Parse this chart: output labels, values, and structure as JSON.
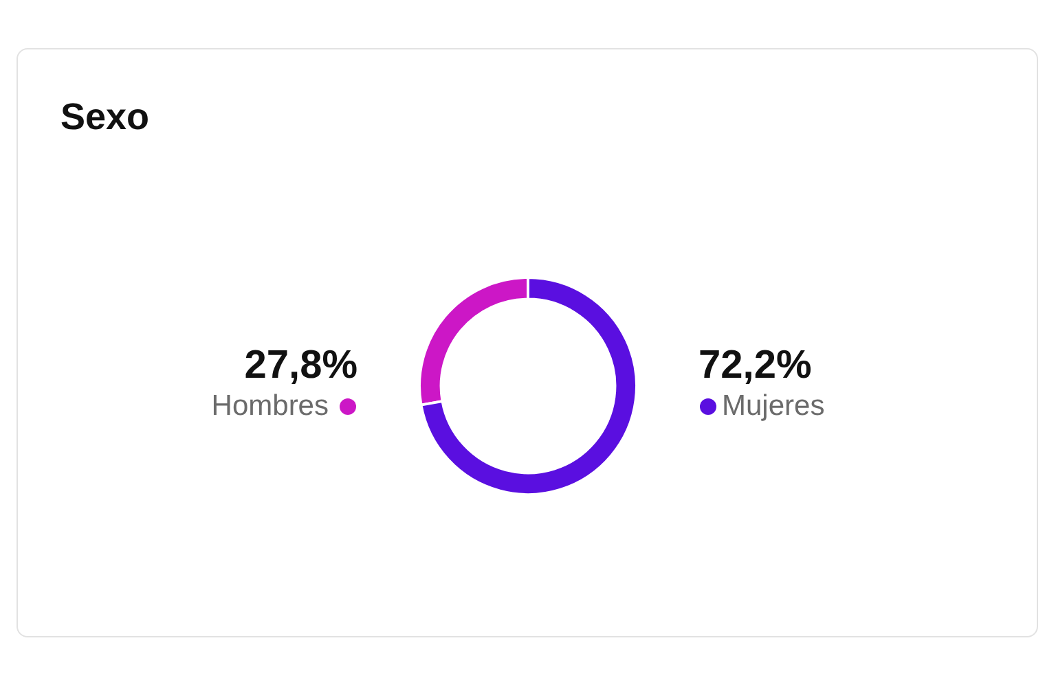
{
  "chart_data": {
    "type": "donut",
    "title": "Sexo",
    "categories": [
      "Hombres",
      "Mujeres"
    ],
    "values": [
      27.8,
      72.2
    ],
    "value_labels": [
      "27,8%",
      "72,2%"
    ],
    "colors": [
      "#cc17c6",
      "#5a0fe0"
    ]
  }
}
